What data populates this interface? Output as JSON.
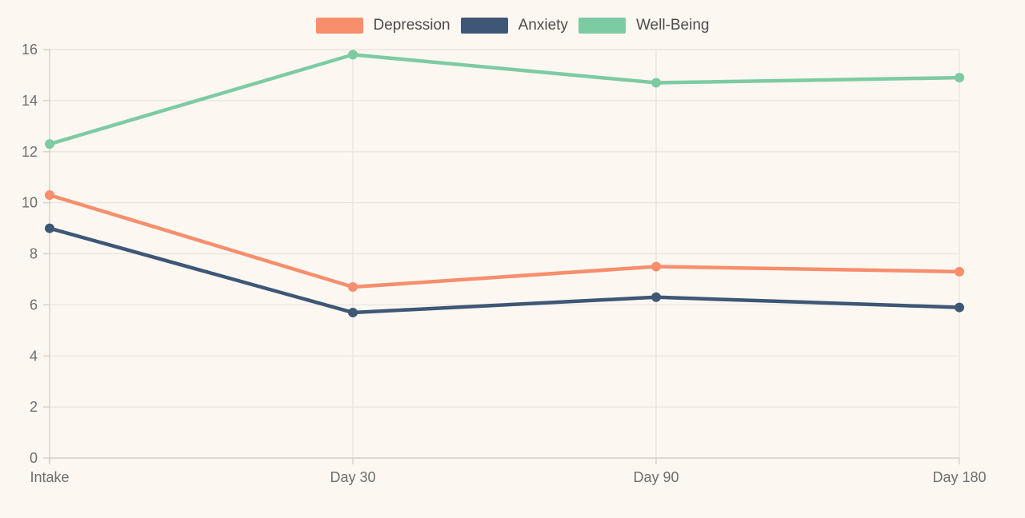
{
  "chart_data": {
    "type": "line",
    "title": "",
    "categories": [
      "Intake",
      "Day 30",
      "Day 90",
      "Day 180"
    ],
    "series": [
      {
        "name": "Depression",
        "color": "#F78E6C",
        "values": [
          10.3,
          6.7,
          7.5,
          7.3
        ]
      },
      {
        "name": "Anxiety",
        "color": "#3E5777",
        "values": [
          9.0,
          5.7,
          6.3,
          5.9
        ]
      },
      {
        "name": "Well-Being",
        "color": "#7DCBA2",
        "values": [
          12.3,
          15.8,
          14.7,
          14.9
        ]
      }
    ],
    "xlabel": "",
    "ylabel": "",
    "ylim": [
      0,
      16
    ],
    "ytick_step": 2,
    "yticks": [
      0,
      2,
      4,
      6,
      8,
      10,
      12,
      14,
      16
    ],
    "grid": true,
    "legend_position": "top-center"
  },
  "colors": {
    "background": "#FDF7F1",
    "gridline": "#E8E3DF",
    "axis": "#D3CFCA",
    "tick_label": "#6E6E6E",
    "legend_label": "#4C4C4C"
  }
}
